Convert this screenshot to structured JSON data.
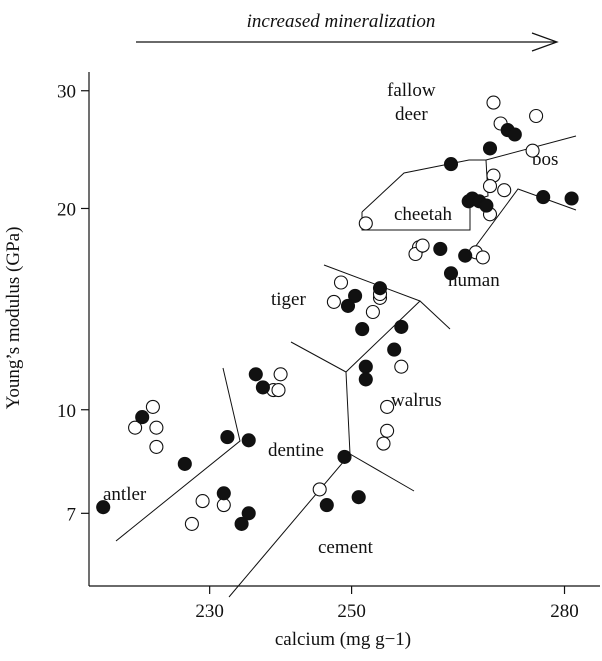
{
  "chart_data": {
    "type": "scatter",
    "xlabel": "calcium (mg g−1)",
    "ylabel": "Young’s modulus (GPa)",
    "top_annotation": "increased mineralization",
    "xlim": [
      213,
      285
    ],
    "ylim": [
      5.45,
      32
    ],
    "y_scale": "log",
    "x_ticks": [
      230,
      250,
      280
    ],
    "y_ticks": [
      7,
      10,
      20,
      30
    ],
    "region_labels": [
      "fallow",
      "deer",
      "bos",
      "cheetah",
      "human",
      "tiger",
      "walrus",
      "dentine",
      "antler",
      "cement"
    ],
    "series": [
      {
        "marker": "open",
        "points": [
          [
            222,
            10.1
          ],
          [
            219.5,
            9.4
          ],
          [
            222.5,
            9.4
          ],
          [
            222.5,
            8.8
          ],
          [
            240,
            11.3
          ],
          [
            239,
            10.7
          ],
          [
            239.7,
            10.7
          ],
          [
            229,
            7.3
          ],
          [
            227.5,
            6.75
          ],
          [
            232,
            7.2
          ],
          [
            245.5,
            7.6
          ],
          [
            255,
            10.1
          ],
          [
            255,
            9.3
          ],
          [
            254.5,
            8.9
          ],
          [
            257,
            11.6
          ],
          [
            248.5,
            15.5
          ],
          [
            247.5,
            14.5
          ],
          [
            253,
            14.0
          ],
          [
            254,
            14.7
          ],
          [
            254,
            14.9
          ],
          [
            252,
            19.0
          ],
          [
            259.5,
            17.5
          ],
          [
            259,
            17.1
          ],
          [
            260,
            17.6
          ],
          [
            267.5,
            17.2
          ],
          [
            268.5,
            16.9
          ],
          [
            269.5,
            19.6
          ],
          [
            270,
            28.8
          ],
          [
            271,
            26.8
          ],
          [
            276,
            27.5
          ],
          [
            275.5,
            24.4
          ],
          [
            270,
            22.4
          ],
          [
            269.5,
            21.6
          ],
          [
            271.5,
            21.3
          ]
        ]
      },
      {
        "marker": "filled",
        "points": [
          [
            215,
            7.15
          ],
          [
            220.5,
            9.75
          ],
          [
            226.5,
            8.3
          ],
          [
            232.5,
            9.1
          ],
          [
            235.5,
            9.0
          ],
          [
            236.5,
            11.3
          ],
          [
            237.5,
            10.8
          ],
          [
            232,
            7.5
          ],
          [
            234.5,
            6.75
          ],
          [
            235.5,
            7.0
          ],
          [
            246.5,
            7.2
          ],
          [
            249,
            8.5
          ],
          [
            251,
            7.4
          ],
          [
            252,
            11.1
          ],
          [
            252,
            11.6
          ],
          [
            256,
            12.3
          ],
          [
            257,
            13.3
          ],
          [
            250.5,
            14.8
          ],
          [
            249.5,
            14.3
          ],
          [
            251.5,
            13.2
          ],
          [
            254,
            15.2
          ],
          [
            262.5,
            17.4
          ],
          [
            264,
            16.0
          ],
          [
            266,
            17.0
          ],
          [
            266.5,
            20.5
          ],
          [
            267,
            20.7
          ],
          [
            268,
            20.5
          ],
          [
            269,
            20.2
          ],
          [
            264,
            23.3
          ],
          [
            269.5,
            24.6
          ],
          [
            272,
            26.2
          ],
          [
            273,
            25.8
          ],
          [
            277,
            20.8
          ],
          [
            281,
            20.7
          ]
        ]
      }
    ]
  }
}
